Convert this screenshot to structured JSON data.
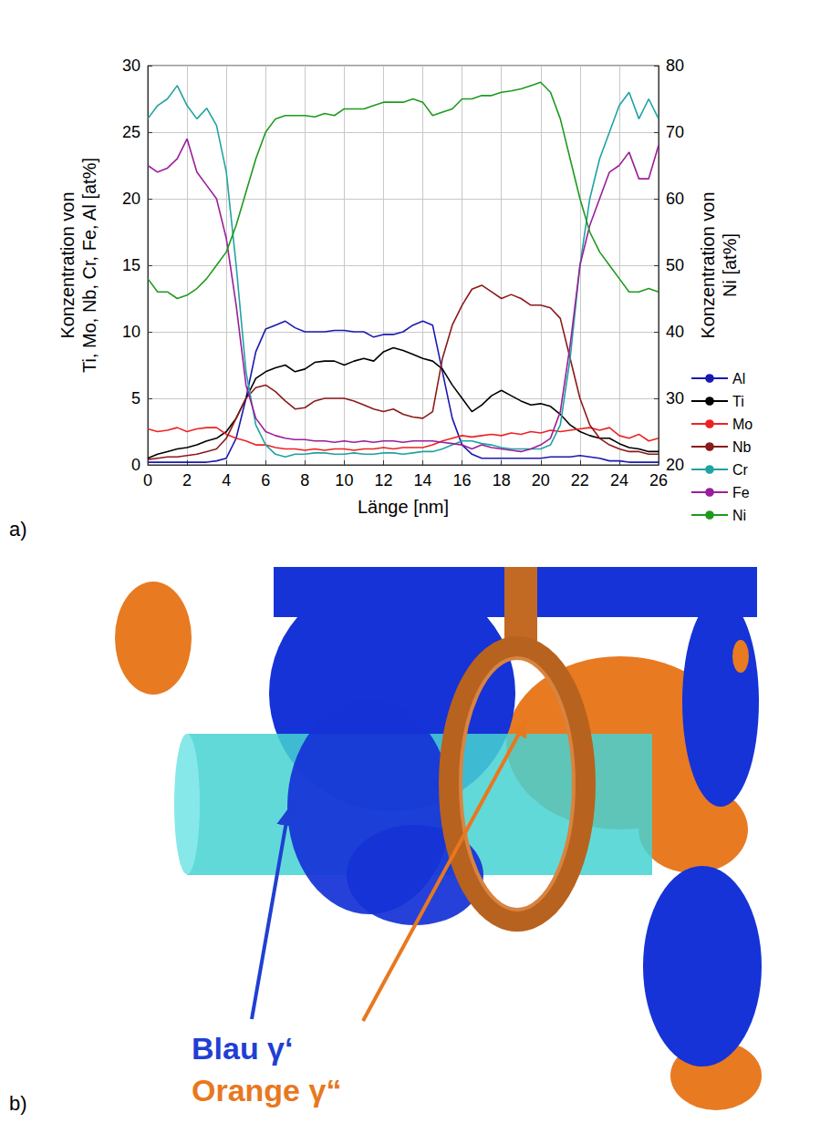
{
  "chart_data": {
    "type": "line",
    "xlabel": "Länge [nm]",
    "ylabel": "Konzentration von\nTi, Mo, Nb, Cr, Fe, Al [at%]",
    "y2label": "Konzentration von\nNi [at%]",
    "x": [
      0,
      0.5,
      1,
      1.5,
      2,
      2.5,
      3,
      3.5,
      4,
      4.5,
      5,
      5.5,
      6,
      6.5,
      7,
      7.5,
      8,
      8.5,
      9,
      9.5,
      10,
      10.5,
      11,
      11.5,
      12,
      12.5,
      13,
      13.5,
      14,
      14.5,
      15,
      15.5,
      16,
      16.5,
      17,
      17.5,
      18,
      18.5,
      19,
      19.5,
      20,
      20.5,
      21,
      21.5,
      22,
      22.5,
      23,
      23.5,
      24,
      24.5,
      25,
      25.5,
      26
    ],
    "series": [
      {
        "name": "Al",
        "color": "#1a1ab0",
        "values": [
          0.2,
          0.2,
          0.2,
          0.2,
          0.2,
          0.2,
          0.2,
          0.3,
          0.5,
          2,
          5,
          8.5,
          10.2,
          10.5,
          10.8,
          10.3,
          10,
          10,
          10,
          10.1,
          10.1,
          10,
          10,
          9.6,
          9.8,
          9.8,
          10,
          10.5,
          10.8,
          10.5,
          7,
          3.5,
          1.5,
          0.8,
          0.5,
          0.5,
          0.5,
          0.5,
          0.5,
          0.5,
          0.5,
          0.6,
          0.6,
          0.6,
          0.7,
          0.6,
          0.5,
          0.3,
          0.3,
          0.2,
          0.2,
          0.2,
          0.2
        ]
      },
      {
        "name": "Ti",
        "color": "#000000",
        "values": [
          0.5,
          0.8,
          1,
          1.2,
          1.3,
          1.5,
          1.8,
          2,
          2.5,
          3.5,
          5,
          6.5,
          7,
          7.3,
          7.5,
          7,
          7.2,
          7.7,
          7.8,
          7.8,
          7.5,
          7.8,
          8,
          7.8,
          8.5,
          8.8,
          8.6,
          8.3,
          8,
          7.8,
          7.2,
          6,
          5,
          4,
          4.5,
          5.2,
          5.6,
          5.2,
          4.8,
          4.5,
          4.6,
          4.4,
          3.8,
          3,
          2.5,
          2.2,
          2,
          2,
          1.6,
          1.3,
          1.2,
          1,
          1
        ]
      },
      {
        "name": "Mo",
        "color": "#ee2222",
        "values": [
          2.7,
          2.5,
          2.6,
          2.8,
          2.5,
          2.7,
          2.8,
          2.8,
          2.3,
          2,
          1.8,
          1.5,
          1.5,
          1.3,
          1.2,
          1.2,
          1.1,
          1.2,
          1.1,
          1.2,
          1.2,
          1.1,
          1.2,
          1.2,
          1.3,
          1.2,
          1.3,
          1.3,
          1.3,
          1.5,
          1.8,
          2,
          2.2,
          2.1,
          2.2,
          2.3,
          2.2,
          2.4,
          2.3,
          2.5,
          2.4,
          2.6,
          2.5,
          2.6,
          2.7,
          2.8,
          2.6,
          2.8,
          2.2,
          2,
          2.3,
          1.8,
          2
        ]
      },
      {
        "name": "Nb",
        "color": "#8b1a1a",
        "values": [
          0.4,
          0.5,
          0.6,
          0.6,
          0.7,
          0.8,
          1,
          1.2,
          2,
          3.5,
          5,
          5.8,
          6,
          5.5,
          4.8,
          4.2,
          4.3,
          4.8,
          5,
          5,
          5,
          4.8,
          4.5,
          4.2,
          4,
          4.2,
          3.8,
          3.6,
          3.5,
          4,
          8,
          10.5,
          12,
          13.2,
          13.5,
          13,
          12.5,
          12.8,
          12.5,
          12,
          12,
          11.8,
          11,
          8,
          5,
          3,
          2,
          1.5,
          1.2,
          1,
          1,
          0.8,
          0.8
        ]
      },
      {
        "name": "Cr",
        "color": "#1fa3a3",
        "values": [
          26,
          27,
          27.5,
          28.5,
          27,
          26,
          26.8,
          25.5,
          22,
          15,
          7,
          3,
          1.5,
          0.8,
          0.6,
          0.8,
          0.8,
          0.9,
          0.9,
          0.8,
          0.8,
          0.9,
          0.8,
          0.8,
          0.9,
          0.9,
          0.8,
          0.9,
          1,
          1,
          1.2,
          1.5,
          1.8,
          1.8,
          1.6,
          1.5,
          1.3,
          1.2,
          1.2,
          1.2,
          1.2,
          1.5,
          3,
          8,
          15,
          20,
          23,
          25,
          27,
          28,
          26,
          27.5,
          26
        ]
      },
      {
        "name": "Fe",
        "color": "#9a1f9a",
        "values": [
          22.5,
          22,
          22.3,
          23,
          24.5,
          22,
          21,
          20,
          17,
          12,
          6,
          3.5,
          2.5,
          2.2,
          2,
          1.9,
          1.9,
          1.8,
          1.8,
          1.7,
          1.8,
          1.7,
          1.8,
          1.7,
          1.8,
          1.8,
          1.7,
          1.8,
          1.8,
          1.8,
          1.7,
          1.6,
          1.5,
          1.2,
          1.5,
          1.3,
          1.2,
          1.1,
          1,
          1.2,
          1.5,
          2,
          4,
          9,
          15,
          18,
          20,
          22,
          22.5,
          23.5,
          21.5,
          21.5,
          24
        ]
      },
      {
        "name": "Ni",
        "color": "#1f9a1f",
        "axis": "y2",
        "values": [
          48,
          46,
          46,
          45,
          45.5,
          46.5,
          48,
          50,
          52,
          56,
          61,
          66,
          70,
          72,
          72.5,
          72.5,
          72.5,
          72.3,
          72.8,
          72.5,
          73.5,
          73.5,
          73.5,
          74,
          74.5,
          74.5,
          74.5,
          75,
          74.5,
          72.5,
          73,
          73.5,
          75,
          75,
          75.5,
          75.5,
          76,
          76.2,
          76.5,
          77,
          77.5,
          76,
          72,
          66,
          60,
          55,
          52,
          50,
          48,
          46,
          46,
          46.5,
          46
        ]
      }
    ],
    "xlim": [
      0,
      26
    ],
    "xticks": [
      0,
      2,
      4,
      6,
      8,
      10,
      12,
      14,
      16,
      18,
      20,
      22,
      24,
      26
    ],
    "ylim": [
      0,
      30
    ],
    "yticks": [
      0,
      5,
      10,
      15,
      20,
      25,
      30
    ],
    "y2lim": [
      20,
      80
    ],
    "y2ticks": [
      20,
      30,
      40,
      50,
      60,
      70,
      80
    ],
    "grid": true,
    "legend": "right"
  },
  "panel_labels": [
    "a)",
    "b)"
  ],
  "image": {
    "labels": [
      {
        "text": "Blau γ‘",
        "color": "#1f3fd4"
      },
      {
        "text": "Orange γ“",
        "color": "#e8781e"
      }
    ]
  }
}
